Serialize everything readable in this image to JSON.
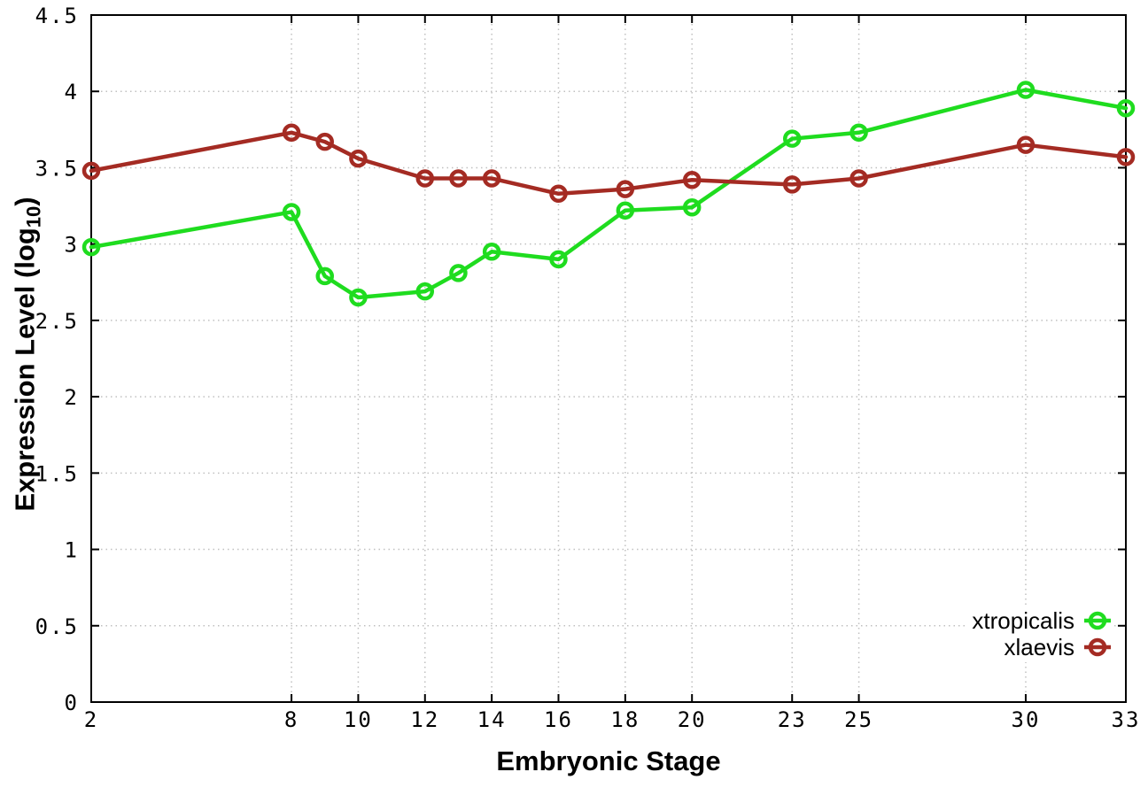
{
  "chart_data": {
    "type": "line",
    "title": "",
    "xlabel": "Embryonic Stage",
    "ylabel": {
      "pre": "Expression Level (log",
      "sub": "10",
      "post": ")"
    },
    "x": [
      2,
      8,
      9,
      10,
      12,
      13,
      14,
      16,
      18,
      20,
      23,
      25,
      30,
      33
    ],
    "series": [
      {
        "name": "xtropicalis",
        "color": "#1fdc1f",
        "values": [
          2.98,
          3.21,
          2.79,
          2.65,
          2.69,
          2.81,
          2.95,
          2.9,
          3.22,
          3.24,
          3.69,
          3.73,
          4.01,
          3.89
        ]
      },
      {
        "name": "xlaevis",
        "color": "#a42b23",
        "values": [
          3.48,
          3.73,
          3.67,
          3.56,
          3.43,
          3.43,
          3.43,
          3.33,
          3.36,
          3.42,
          3.39,
          3.43,
          3.65,
          3.57
        ]
      }
    ],
    "xticks": {
      "values": [
        2,
        8,
        10,
        12,
        14,
        16,
        18,
        20,
        23,
        25,
        30,
        33
      ],
      "labels": [
        "2",
        "8",
        "10",
        "12",
        "14",
        "16",
        "18",
        "20",
        "23",
        "25",
        "30",
        "33"
      ]
    },
    "yticks": {
      "values": [
        0,
        0.5,
        1,
        1.5,
        2,
        2.5,
        3,
        3.5,
        4,
        4.5
      ],
      "labels": [
        "0",
        "0.5",
        "1",
        "1.5",
        "2",
        "2.5",
        "3",
        "3.5",
        "4",
        "4.5"
      ]
    },
    "xlim": [
      2,
      33
    ],
    "ylim": [
      0,
      4.5
    ],
    "grid": true,
    "legend_position": "bottom-right",
    "legend_items": [
      "xtropicalis",
      "xlaevis"
    ]
  },
  "style": {
    "background": "#ffffff",
    "border_color": "#000000",
    "grid_color": "#c0c0c0",
    "tick_label_color": "#000000"
  }
}
